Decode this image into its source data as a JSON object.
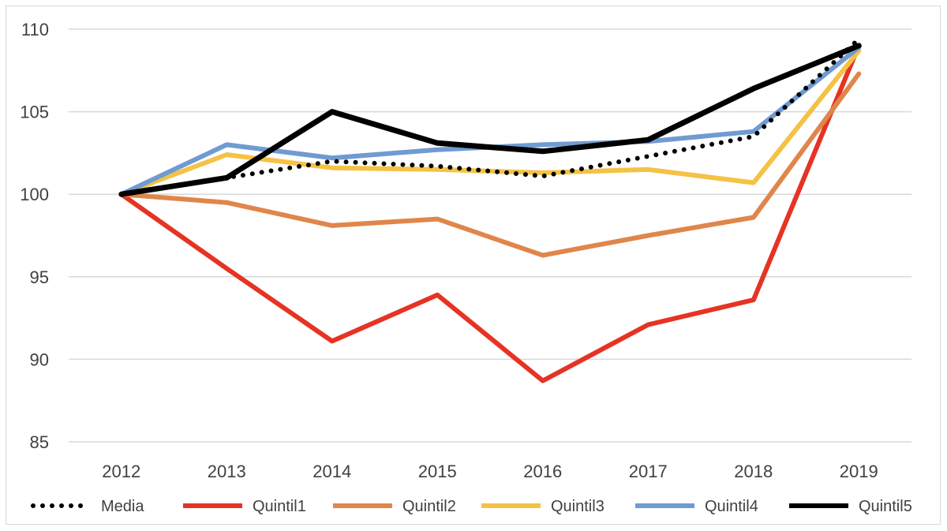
{
  "chart_data": {
    "type": "line",
    "title": "",
    "xlabel": "",
    "ylabel": "",
    "categories": [
      "2012",
      "2013",
      "2014",
      "2015",
      "2016",
      "2017",
      "2018",
      "2019"
    ],
    "ylim": [
      85,
      110
    ],
    "yticks": [
      "85",
      "90",
      "95",
      "100",
      "105",
      "110"
    ],
    "grid": true,
    "legend_position": "bottom",
    "series": [
      {
        "name": "Media",
        "color": "#000000",
        "style": "dotted",
        "values": [
          100,
          101.0,
          102.0,
          101.7,
          101.1,
          102.3,
          103.5,
          109.4
        ]
      },
      {
        "name": "Quintil1",
        "color": "#e63323",
        "style": "solid",
        "values": [
          100,
          95.5,
          91.1,
          93.9,
          88.7,
          92.1,
          93.6,
          109.0
        ]
      },
      {
        "name": "Quintil2",
        "color": "#e0864b",
        "style": "solid",
        "values": [
          100,
          99.5,
          98.1,
          98.5,
          96.3,
          97.5,
          98.6,
          107.3
        ]
      },
      {
        "name": "Quintil3",
        "color": "#f4c244",
        "style": "solid",
        "values": [
          100,
          102.4,
          101.6,
          101.5,
          101.3,
          101.5,
          100.7,
          108.7
        ]
      },
      {
        "name": "Quintil4",
        "color": "#6f9bd1",
        "style": "solid",
        "values": [
          100,
          103.0,
          102.2,
          102.7,
          103.0,
          103.2,
          103.8,
          108.9
        ]
      },
      {
        "name": "Quintil5",
        "color": "#000000",
        "style": "solid",
        "values": [
          100,
          101.0,
          105.0,
          103.1,
          102.6,
          103.3,
          106.4,
          109.0
        ]
      }
    ]
  }
}
